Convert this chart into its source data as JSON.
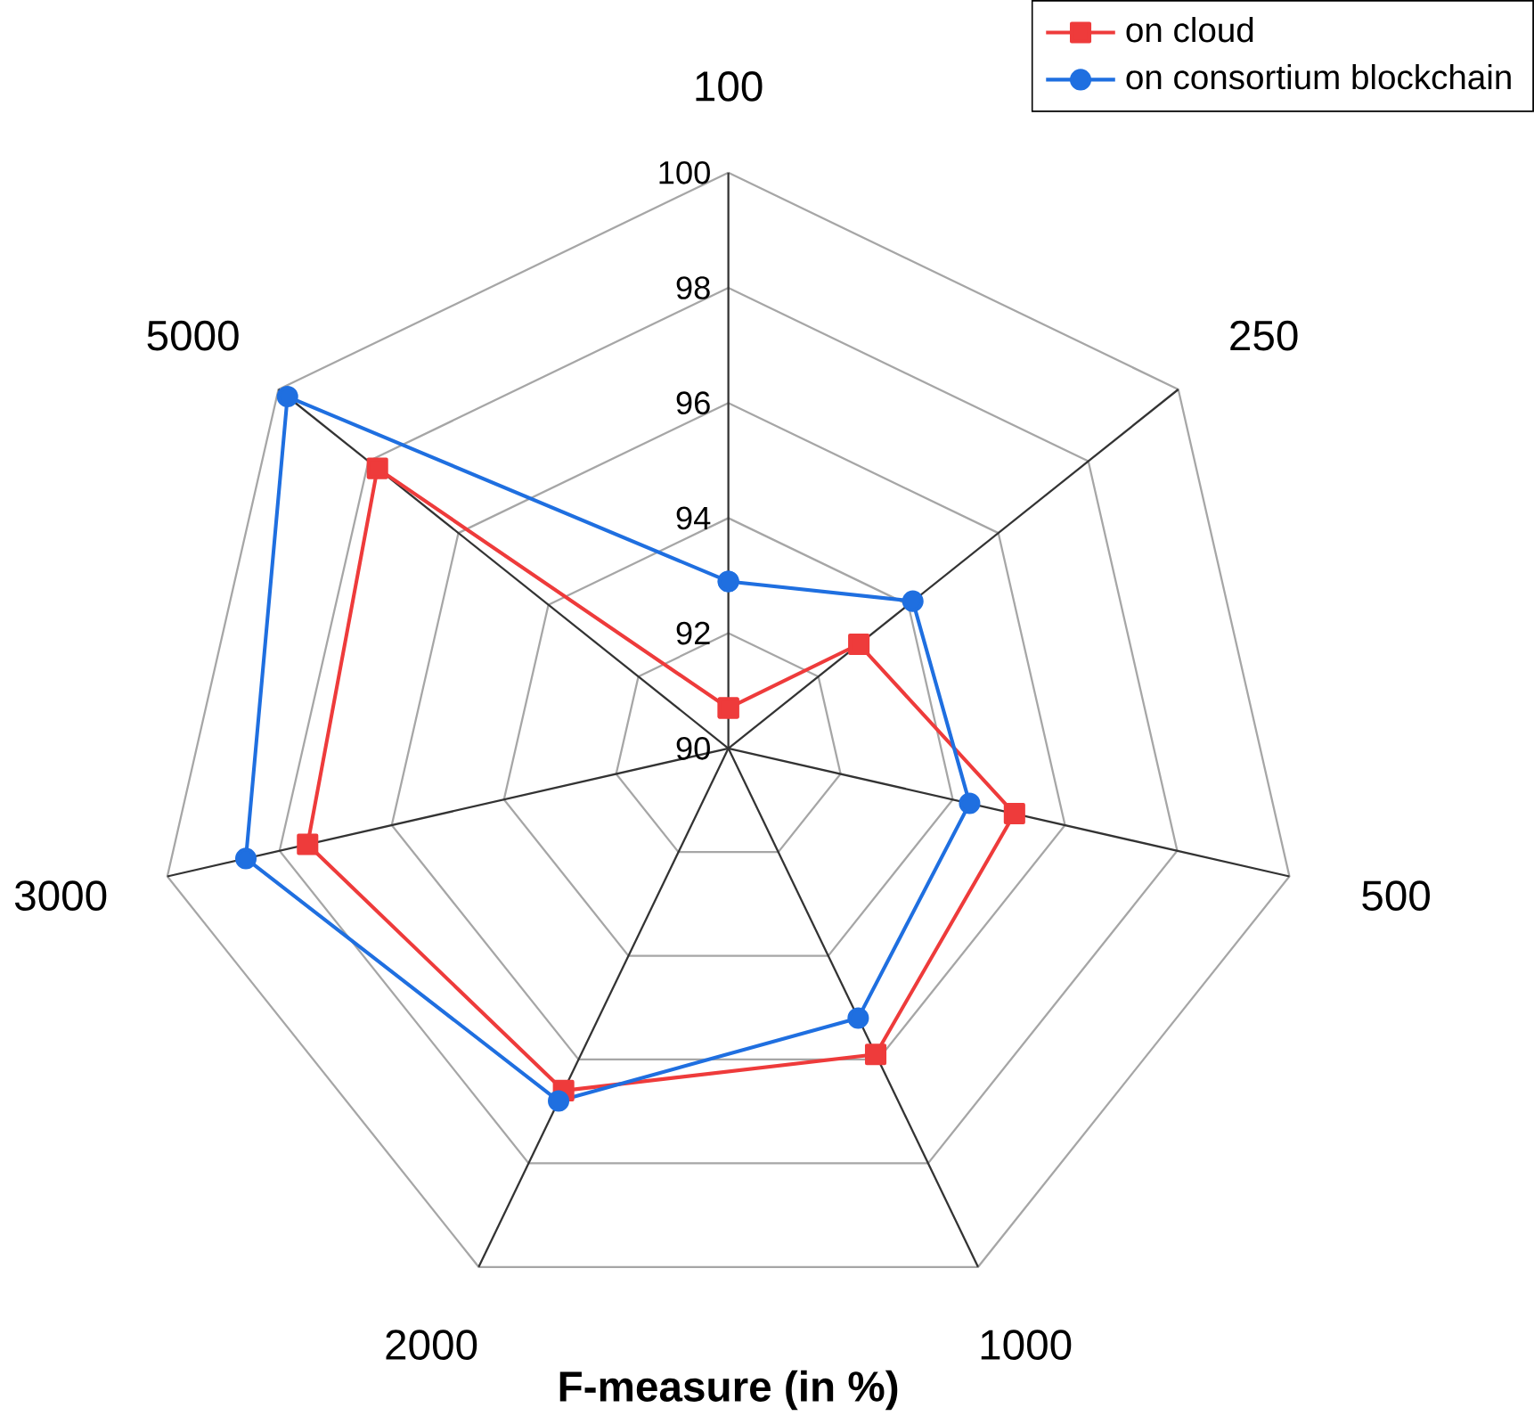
{
  "chart_data": {
    "type": "radar",
    "title": "F-measure (in %)",
    "categories": [
      "100",
      "250",
      "500",
      "1000",
      "2000",
      "3000",
      "5000"
    ],
    "ylim": [
      90,
      100
    ],
    "yticks": [
      90,
      92,
      94,
      96,
      98,
      100
    ],
    "grid": true,
    "legend": "top right",
    "series": [
      {
        "name": "on cloud",
        "color": "#ee3b3b",
        "marker": "square",
        "values": [
          90.7,
          92.9,
          95.1,
          95.9,
          96.6,
          97.5,
          97.8
        ]
      },
      {
        "name": "on consortium blockchain",
        "color": "#1f6fe0",
        "marker": "circle",
        "values": [
          92.9,
          94.1,
          94.3,
          95.2,
          96.8,
          98.6,
          99.8
        ]
      }
    ]
  }
}
